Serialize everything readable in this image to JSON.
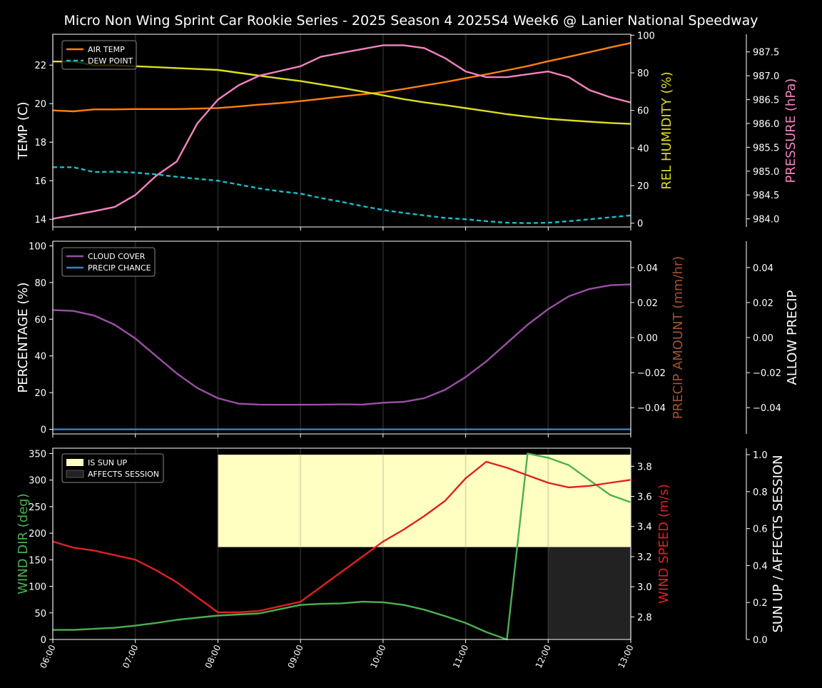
{
  "title": "Micro Non Wing Sprint Car Rookie Series - 2025 Season 4 2025S4 Week6 @ Lanier National Speedway",
  "colors": {
    "air_temp": "#ff7f0e",
    "dew_point": "#17becf",
    "humidity": "#dddd22",
    "pressure": "#f383c0",
    "cloud": "#9b4fa6",
    "precip_chance": "#3f7fbf",
    "precip_amount_label": "#a0522d",
    "wind_dir": "#4caf50",
    "wind_speed": "#e02020",
    "sun_up": "#ffffc2",
    "affects": "#222222"
  },
  "chart_data": [
    {
      "type": "line",
      "panel": "temperature",
      "x": [
        "06:00",
        "06:15",
        "06:30",
        "06:45",
        "07:00",
        "07:15",
        "07:30",
        "07:45",
        "08:00",
        "08:15",
        "08:30",
        "08:45",
        "09:00",
        "09:15",
        "09:30",
        "09:45",
        "10:00",
        "10:15",
        "10:30",
        "10:45",
        "11:00",
        "11:15",
        "11:30",
        "11:45",
        "12:00",
        "12:15",
        "12:30",
        "12:45",
        "13:00"
      ],
      "xticks": [
        "06:00",
        "07:00",
        "08:00",
        "09:00",
        "10:00",
        "11:00",
        "12:00",
        "13:00"
      ],
      "ylabel": "TEMP (C)",
      "ylim": [
        13.6,
        23.6
      ],
      "yticks": [
        "14",
        "16",
        "18",
        "20",
        "22"
      ],
      "y2label": "REL HUMIDITY (%)",
      "y2lim": [
        -2,
        100.5
      ],
      "y2ticks": [
        "0",
        "20",
        "40",
        "60",
        "80",
        "100"
      ],
      "y3label": "PRESSURE (hPa)",
      "y3lim": [
        983.83,
        987.87
      ],
      "y3ticks": [
        "984.0",
        "984.5",
        "985.0",
        "985.5",
        "986.0",
        "986.5",
        "987.0",
        "987.5"
      ],
      "legend_position": "top-left",
      "series": [
        {
          "name": "AIR TEMP",
          "axis": "left",
          "values": [
            19.65,
            19.6,
            19.7,
            19.7,
            19.72,
            19.72,
            19.72,
            19.74,
            19.77,
            19.85,
            19.95,
            20.03,
            20.13,
            20.25,
            20.37,
            20.48,
            20.6,
            20.76,
            20.94,
            21.12,
            21.32,
            21.52,
            21.73,
            21.95,
            22.2,
            22.43,
            22.67,
            22.92,
            23.15
          ]
        },
        {
          "name": "DEW POINT",
          "axis": "left",
          "dashed": true,
          "values": [
            16.7,
            16.7,
            16.45,
            16.47,
            16.42,
            16.33,
            16.2,
            16.1,
            16.0,
            15.8,
            15.6,
            15.45,
            15.33,
            15.1,
            14.9,
            14.68,
            14.48,
            14.33,
            14.2,
            14.07,
            14.0,
            13.9,
            13.82,
            13.8,
            13.82,
            13.9,
            14.0,
            14.1,
            14.2
          ]
        },
        {
          "name": "REL HUMIDITY",
          "axis": "right1",
          "values": [
            86,
            86,
            84,
            84,
            83.5,
            83,
            82.5,
            82,
            81.5,
            80,
            78.5,
            77,
            75.6,
            73.8,
            72,
            70,
            68,
            66,
            64.3,
            62.8,
            61.2,
            59.6,
            58,
            56.7,
            55.5,
            54.7,
            54,
            53.3,
            52.8
          ]
        },
        {
          "name": "PRESSURE",
          "axis": "right2",
          "values": [
            984.0,
            984.08,
            984.16,
            984.25,
            984.5,
            984.9,
            985.2,
            986.0,
            986.5,
            986.8,
            987.0,
            987.1,
            987.2,
            987.4,
            987.48,
            987.56,
            987.64,
            987.64,
            987.58,
            987.37,
            987.09,
            986.97,
            986.97,
            987.03,
            987.09,
            986.97,
            986.7,
            986.55,
            986.44
          ]
        }
      ]
    },
    {
      "type": "line",
      "panel": "cloud-precip",
      "ylabel": "PERCENTAGE (%)",
      "ylim": [
        -2.5,
        102.5
      ],
      "yticks": [
        "0",
        "20",
        "40",
        "60",
        "80",
        "100"
      ],
      "y2label": "PRECIP AMOUNT (mm/hr)",
      "y2lim": [
        -0.055,
        0.055
      ],
      "y2ticks": [
        "−0.04",
        "−0.02",
        "0.00",
        "0.02",
        "0.04"
      ],
      "y3label": "ALLOW PRECIP",
      "y3lim": [
        -0.055,
        0.055
      ],
      "y3ticks": [
        "−0.04",
        "−0.02",
        "0.00",
        "0.02",
        "0.04"
      ],
      "legend_position": "top-left",
      "series": [
        {
          "name": "CLOUD COVER",
          "axis": "left",
          "values": [
            65,
            64.5,
            62,
            57,
            49.5,
            40,
            30.5,
            22.5,
            17,
            14,
            13.5,
            13.4,
            13.4,
            13.5,
            13.6,
            13.5,
            14.5,
            15,
            17,
            21.5,
            28.5,
            37,
            47,
            57,
            65.5,
            72.5,
            76.5,
            78.5,
            79
          ]
        },
        {
          "name": "PRECIP CHANCE",
          "axis": "left",
          "values": [
            0,
            0,
            0,
            0,
            0,
            0,
            0,
            0,
            0,
            0,
            0,
            0,
            0,
            0,
            0,
            0,
            0,
            0,
            0,
            0,
            0,
            0,
            0,
            0,
            0,
            0,
            0,
            0,
            0
          ]
        }
      ]
    },
    {
      "type": "line",
      "panel": "wind-sun",
      "ylabel": "WIND DIR (deg)",
      "ylim": [
        0,
        360
      ],
      "yticks": [
        "0",
        "50",
        "100",
        "150",
        "200",
        "250",
        "300",
        "350"
      ],
      "y2label": "WIND SPEED (m/s)",
      "y2lim": [
        2.65,
        3.92
      ],
      "y2ticks": [
        "2.8",
        "3.0",
        "3.2",
        "3.4",
        "3.6",
        "3.8"
      ],
      "y3label": "SUN UP / AFFECTS SESSION",
      "y3lim": [
        0,
        1.035
      ],
      "y3ticks": [
        "0.0",
        "0.2",
        "0.4",
        "0.6",
        "0.8",
        "1.0"
      ],
      "legend_position": "top-left",
      "sun_up": {
        "name": "IS SUN UP",
        "start": "08:00",
        "end": "13:00",
        "from": 0.5,
        "to": 1.0
      },
      "affects_session": {
        "name": "AFFECTS SESSION",
        "start": "12:00",
        "end": "13:00",
        "from": 0,
        "to": 0.5
      },
      "series": [
        {
          "name": "WIND DIR",
          "axis": "left",
          "values": [
            18,
            18,
            20,
            22,
            26,
            31,
            37,
            41,
            45,
            47,
            49,
            57,
            65,
            67,
            68,
            71,
            70,
            65,
            56,
            44,
            31,
            14,
            0,
            350,
            342,
            328,
            300,
            272,
            258
          ]
        },
        {
          "name": "WIND SPEED",
          "axis": "right1",
          "values": [
            3.3,
            3.26,
            3.24,
            3.21,
            3.18,
            3.11,
            3.03,
            2.93,
            2.83,
            2.83,
            2.84,
            2.87,
            2.9,
            3.0,
            3.1,
            3.2,
            3.3,
            3.38,
            3.47,
            3.57,
            3.72,
            3.83,
            3.79,
            3.74,
            3.69,
            3.66,
            3.67,
            3.69,
            3.71
          ]
        }
      ]
    }
  ]
}
